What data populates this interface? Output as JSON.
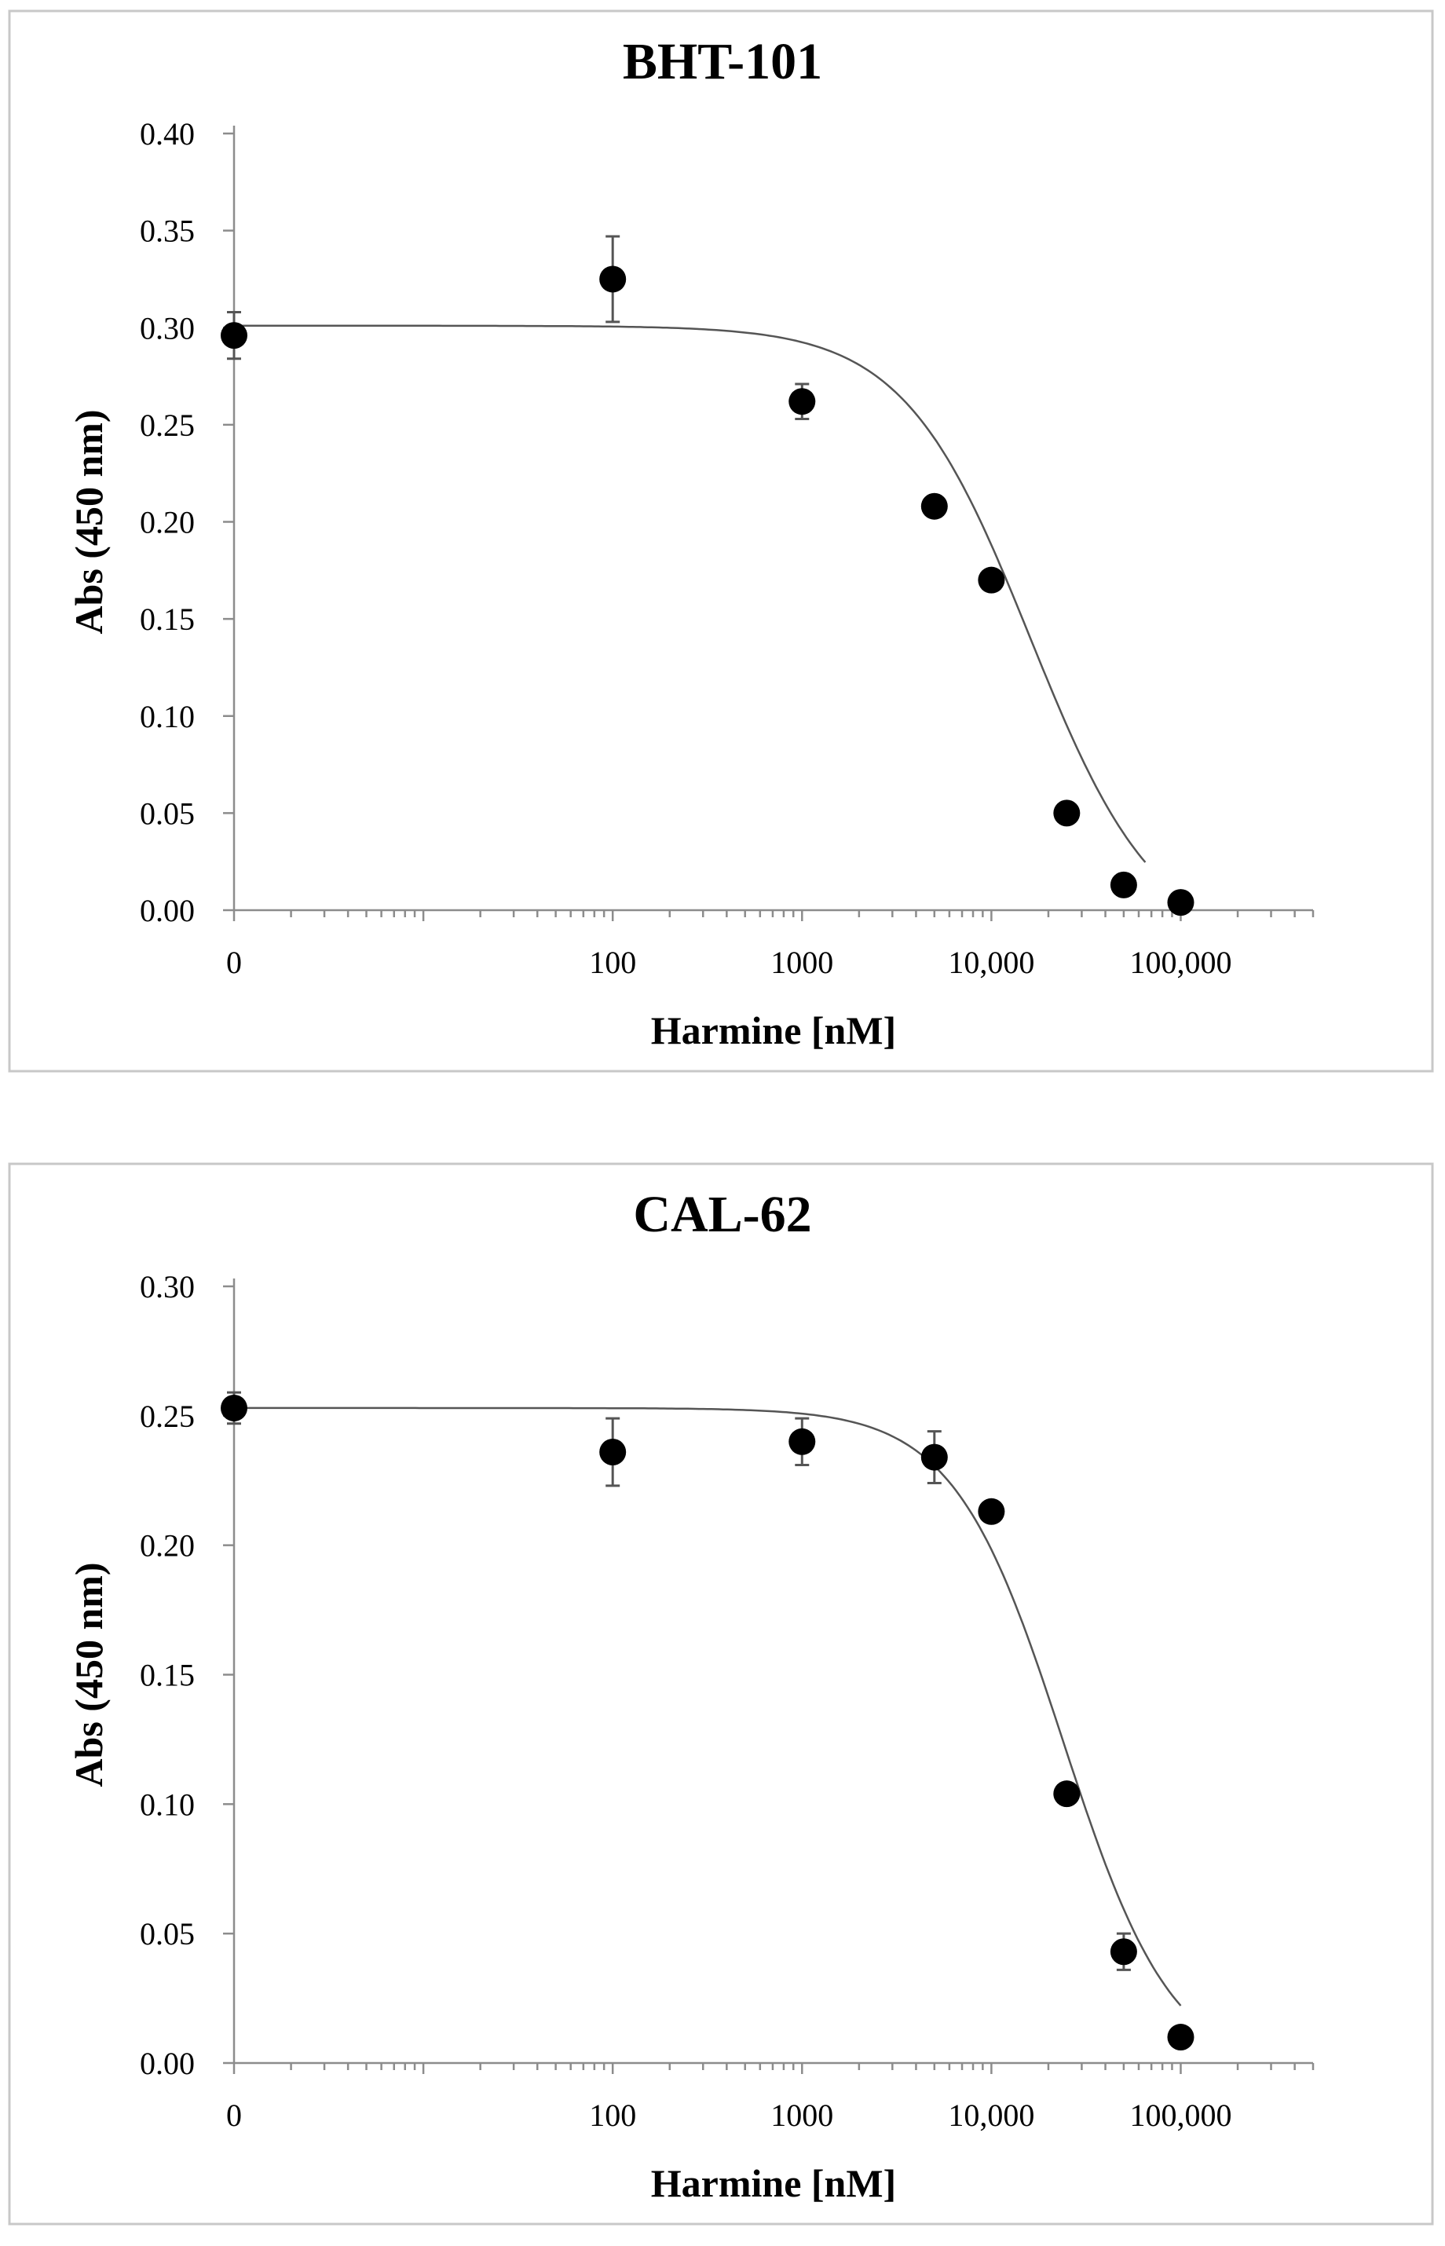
{
  "chart_data": [
    {
      "type": "scatter",
      "title": "BHT-101",
      "xlabel": "Harmine [nM]",
      "ylabel": "Abs (450 nm)",
      "x_scale": "log",
      "xlim": [
        1,
        500000
      ],
      "ylim": [
        0,
        0.4
      ],
      "x_ticks": [
        {
          "value": 1,
          "label": "0"
        },
        {
          "value": 100,
          "label": "100"
        },
        {
          "value": 1000,
          "label": "1000"
        },
        {
          "value": 10000,
          "label": "10,000"
        },
        {
          "value": 100000,
          "label": "100,000"
        }
      ],
      "y_ticks": [
        {
          "value": 0,
          "label": "0.00"
        },
        {
          "value": 0.05,
          "label": "0.05"
        },
        {
          "value": 0.1,
          "label": "0.10"
        },
        {
          "value": 0.15,
          "label": "0.15"
        },
        {
          "value": 0.2,
          "label": "0.20"
        },
        {
          "value": 0.25,
          "label": "0.25"
        },
        {
          "value": 0.3,
          "label": "0.30"
        },
        {
          "value": 0.35,
          "label": "0.35"
        },
        {
          "value": 0.4,
          "label": "0.40"
        }
      ],
      "points": [
        {
          "x": 1,
          "y": 0.296,
          "err": 0.012
        },
        {
          "x": 100,
          "y": 0.325,
          "err": 0.022
        },
        {
          "x": 1000,
          "y": 0.262,
          "err": 0.009
        },
        {
          "x": 5000,
          "y": 0.208,
          "err": 0.004
        },
        {
          "x": 10000,
          "y": 0.17,
          "err": 0.004
        },
        {
          "x": 25000,
          "y": 0.05,
          "err": 0.003
        },
        {
          "x": 50000,
          "y": 0.013,
          "err": 0.003
        },
        {
          "x": 100000,
          "y": 0.004,
          "err": 0.002
        }
      ],
      "fit": {
        "top": 0.301,
        "bottom": -0.02,
        "ic50": 16000,
        "hill": 1.3,
        "x_end": 65000
      }
    },
    {
      "type": "scatter",
      "title": "CAL-62",
      "xlabel": "Harmine [nM]",
      "ylabel": "Abs (450 nm)",
      "x_scale": "log",
      "xlim": [
        1,
        500000
      ],
      "ylim": [
        0,
        0.3
      ],
      "x_ticks": [
        {
          "value": 1,
          "label": "0"
        },
        {
          "value": 100,
          "label": "100"
        },
        {
          "value": 1000,
          "label": "1000"
        },
        {
          "value": 10000,
          "label": "10,000"
        },
        {
          "value": 100000,
          "label": "100,000"
        }
      ],
      "y_ticks": [
        {
          "value": 0,
          "label": "0.00"
        },
        {
          "value": 0.05,
          "label": "0.05"
        },
        {
          "value": 0.1,
          "label": "0.10"
        },
        {
          "value": 0.15,
          "label": "0.15"
        },
        {
          "value": 0.2,
          "label": "0.20"
        },
        {
          "value": 0.25,
          "label": "0.25"
        },
        {
          "value": 0.3,
          "label": "0.30"
        }
      ],
      "points": [
        {
          "x": 1,
          "y": 0.253,
          "err": 0.006
        },
        {
          "x": 100,
          "y": 0.236,
          "err": 0.013
        },
        {
          "x": 1000,
          "y": 0.24,
          "err": 0.009
        },
        {
          "x": 5000,
          "y": 0.234,
          "err": 0.01
        },
        {
          "x": 10000,
          "y": 0.213,
          "err": 0.003
        },
        {
          "x": 25000,
          "y": 0.104,
          "err": 0.004
        },
        {
          "x": 50000,
          "y": 0.043,
          "err": 0.007
        },
        {
          "x": 100000,
          "y": 0.01,
          "err": 0.002
        }
      ],
      "fit": {
        "top": 0.253,
        "bottom": -0.005,
        "ic50": 24000,
        "hill": 1.5,
        "x_end": 100000
      }
    }
  ]
}
